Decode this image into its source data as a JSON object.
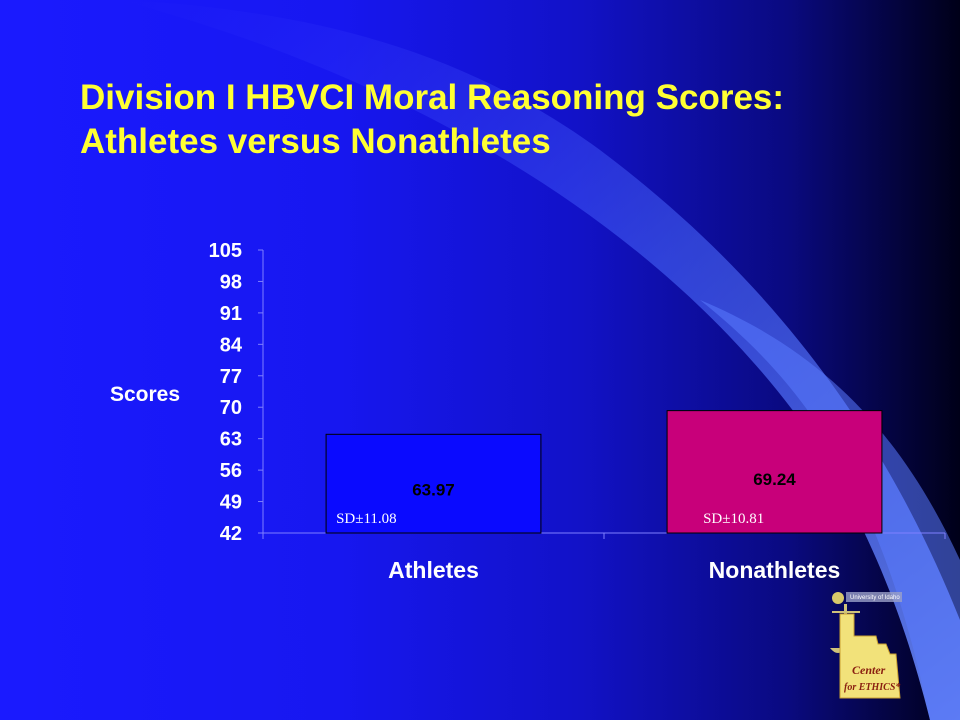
{
  "slide": {
    "title_line1": "Division I HBVCI Moral Reasoning Scores:",
    "title_line2": "Athletes versus Nonathletes"
  },
  "logo": {
    "top_text": "University of Idaho",
    "line1": "Center",
    "line2": "for ETHICS*"
  },
  "chart_data": {
    "type": "bar",
    "title": "",
    "ylabel": "Scores",
    "xlabel": "",
    "ylim": [
      42,
      105
    ],
    "yticks": [
      42,
      49,
      56,
      63,
      70,
      77,
      84,
      91,
      98,
      105
    ],
    "categories": [
      "Athletes",
      "Nonathletes"
    ],
    "values": [
      63.97,
      69.24
    ],
    "value_labels": [
      "63.97",
      "69.24"
    ],
    "sd_labels": [
      "SD±11.08",
      "SD±10.81"
    ],
    "bar_colors": [
      "#0a0aff",
      "#c8007a"
    ],
    "grid": false,
    "legend": "none"
  }
}
